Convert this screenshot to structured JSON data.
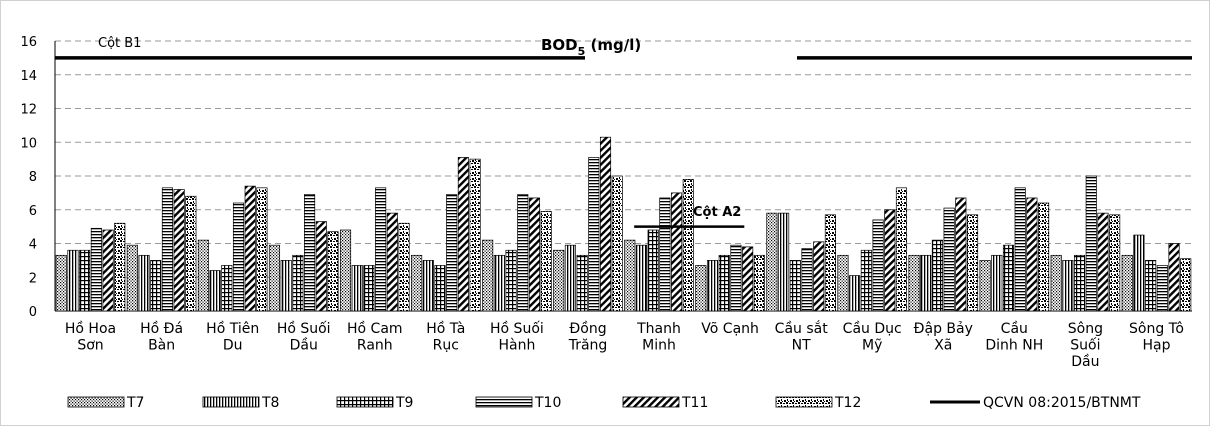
{
  "chart_data": {
    "type": "bar",
    "title": "BOD",
    "title_sub": "5",
    "title_suffix": " (mg/l)",
    "ylim": [
      0,
      16
    ],
    "yticks": [
      0,
      2,
      4,
      6,
      8,
      10,
      12,
      14,
      16
    ],
    "grid": "horizontal dashed",
    "legend_position": "bottom",
    "categories": [
      [
        "Hồ Hoa",
        "Sơn"
      ],
      [
        "Hồ Đá",
        "Bàn"
      ],
      [
        "Hồ Tiên",
        "Du"
      ],
      [
        "Hồ Suối",
        "Dầu"
      ],
      [
        "Hồ Cam",
        "Ranh"
      ],
      [
        "Hồ Tà",
        "Rục"
      ],
      [
        "Hồ Suối",
        "Hành"
      ],
      [
        "Đồng",
        "Trăng"
      ],
      [
        "Thanh",
        "Minh"
      ],
      [
        "Võ Cạnh"
      ],
      [
        "Cầu sắt",
        "NT"
      ],
      [
        "Cầu Dục",
        "Mỹ"
      ],
      [
        "Đập Bảy",
        "Xã"
      ],
      [
        "Cầu",
        "Dinh NH"
      ],
      [
        "Sông",
        "Suối",
        "Dầu"
      ],
      [
        "Sông Tô",
        "Hạp"
      ]
    ],
    "series": [
      {
        "name": "T7",
        "pattern": "dots",
        "values": [
          3.3,
          3.9,
          4.2,
          3.9,
          4.8,
          3.3,
          4.2,
          3.6,
          4.2,
          2.7,
          5.8,
          3.3,
          3.3,
          3.0,
          3.3,
          3.3
        ]
      },
      {
        "name": "T8",
        "pattern": "vlines",
        "values": [
          3.6,
          3.3,
          2.4,
          3.0,
          2.7,
          3.0,
          3.3,
          3.9,
          3.9,
          3.0,
          5.8,
          2.1,
          3.3,
          3.3,
          3.0,
          4.5
        ]
      },
      {
        "name": "T9",
        "pattern": "grid",
        "values": [
          3.6,
          3.0,
          2.7,
          3.3,
          2.7,
          2.7,
          3.6,
          3.3,
          4.8,
          3.3,
          3.0,
          3.6,
          4.2,
          3.9,
          3.3,
          3.0
        ]
      },
      {
        "name": "T10",
        "pattern": "hlines",
        "values": [
          4.9,
          7.3,
          6.4,
          6.9,
          7.3,
          6.9,
          6.9,
          9.1,
          6.7,
          3.9,
          3.7,
          5.4,
          6.1,
          7.3,
          8.0,
          2.7
        ]
      },
      {
        "name": "T11",
        "pattern": "diag",
        "values": [
          4.8,
          7.2,
          7.4,
          5.3,
          5.8,
          9.1,
          6.7,
          10.3,
          7.0,
          3.8,
          4.1,
          6.0,
          6.7,
          6.7,
          5.8,
          4.0
        ]
      },
      {
        "name": "T12",
        "pattern": "mottle",
        "values": [
          5.2,
          6.8,
          7.3,
          4.7,
          5.2,
          9.0,
          5.9,
          8.0,
          7.8,
          3.3,
          5.7,
          7.3,
          5.7,
          6.4,
          5.7,
          3.1
        ]
      }
    ],
    "reference_lines": [
      {
        "label": "Cột B1",
        "value": 15,
        "x_start": 0,
        "x_end": 16
      },
      {
        "label": "Cột A2",
        "value": 5,
        "x_start": 8.15,
        "x_end": 9.7
      }
    ],
    "reference_series_name": "QCVN 08:2015/BTNMT"
  }
}
